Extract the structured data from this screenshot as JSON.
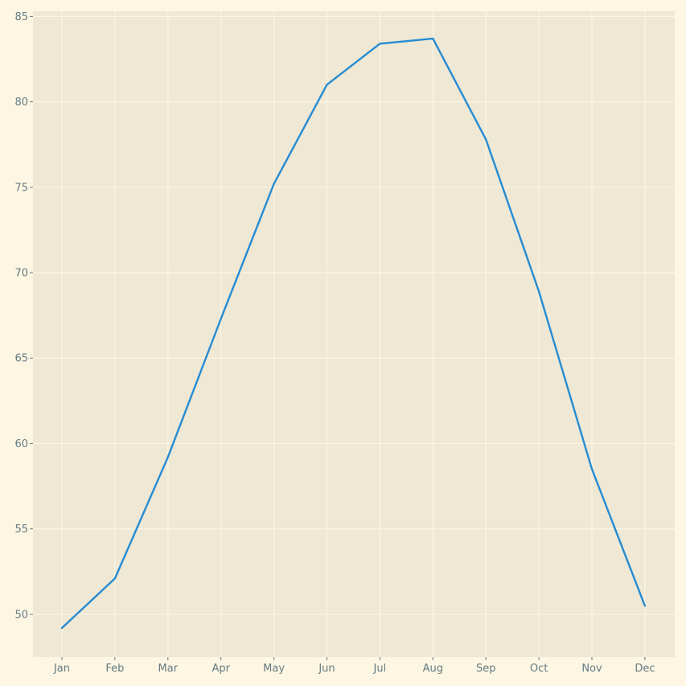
{
  "chart_data": {
    "type": "line",
    "title": "",
    "xlabel": "",
    "ylabel": "",
    "categories": [
      "Jan",
      "Feb",
      "Mar",
      "Apr",
      "May",
      "Jun",
      "Jul",
      "Aug",
      "Sep",
      "Oct",
      "Nov",
      "Dec"
    ],
    "series": [
      {
        "values": [
          49.2,
          52.1,
          59.2,
          67.3,
          75.2,
          81.0,
          83.4,
          83.7,
          77.8,
          68.9,
          58.5,
          50.5
        ],
        "color": "#268bd2"
      }
    ],
    "yticks": [
      50,
      55,
      60,
      65,
      70,
      75,
      80,
      85
    ],
    "ylim": [
      47.5,
      85.3
    ],
    "grid": true,
    "legend": "none",
    "colors": {
      "figure_background": "#fdf6e3",
      "plot_background": "#eee8d5",
      "grid": "#fdf6e3",
      "tick_text": "#657b83",
      "line": "#268bd2"
    }
  }
}
